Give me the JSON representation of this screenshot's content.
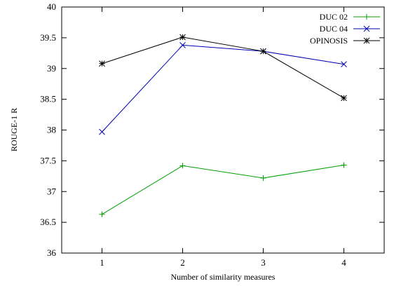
{
  "chart_data": {
    "type": "line",
    "categories": [
      "1",
      "2",
      "3",
      "4"
    ],
    "x": [
      1,
      2,
      3,
      4
    ],
    "xlabel": "Number of similarity measures",
    "ylabel": "ROUGE-1 R",
    "xlim": [
      0.5,
      4.5
    ],
    "ylim": [
      36,
      40
    ],
    "yticks": [
      "36",
      "36.5",
      "37",
      "37.5",
      "38",
      "38.5",
      "39",
      "39.5",
      "40"
    ],
    "grid": false,
    "legend_position": "top-right",
    "series": [
      {
        "name": "DUC 02",
        "values": [
          36.63,
          37.42,
          37.22,
          37.43
        ],
        "color": "#00a000",
        "marker": "plus"
      },
      {
        "name": "DUC 04",
        "values": [
          37.97,
          39.38,
          39.28,
          39.07
        ],
        "color": "#0000b0",
        "marker": "cross"
      },
      {
        "name": "OPINOSIS",
        "values": [
          39.08,
          39.51,
          39.28,
          38.52
        ],
        "color": "#000000",
        "marker": "star"
      }
    ]
  }
}
